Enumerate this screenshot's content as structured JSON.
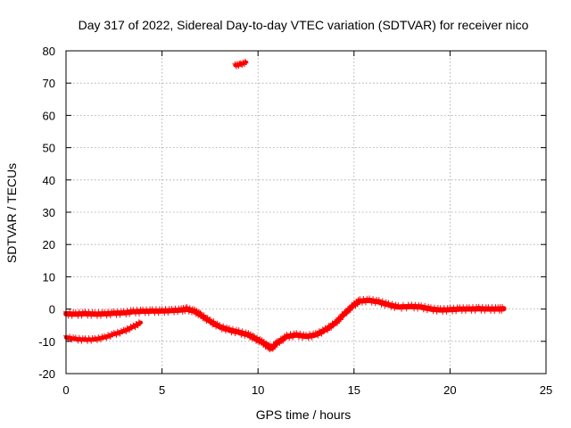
{
  "chart_data": {
    "type": "scatter",
    "title": "Day 317 of 2022, Sidereal Day-to-day VTEC variation (SDTVAR) for receiver nico",
    "xlabel": "GPS time / hours",
    "ylabel": "SDTVAR / TECUs",
    "xlim": [
      0,
      25
    ],
    "ylim": [
      -20,
      80
    ],
    "xticks": [
      0,
      5,
      10,
      15,
      20,
      25
    ],
    "yticks": [
      -20,
      -10,
      0,
      10,
      20,
      30,
      40,
      50,
      60,
      70,
      80
    ],
    "grid": true,
    "series": [
      {
        "name": "main band",
        "color": "#ff0000",
        "band_width": 1.6,
        "points": [
          [
            0.0,
            -1.5
          ],
          [
            0.5,
            -1.6
          ],
          [
            1.0,
            -1.4
          ],
          [
            1.5,
            -1.6
          ],
          [
            2.0,
            -1.5
          ],
          [
            2.5,
            -1.3
          ],
          [
            3.0,
            -1.2
          ],
          [
            3.5,
            -0.8
          ],
          [
            4.0,
            -0.7
          ],
          [
            4.5,
            -0.6
          ],
          [
            5.0,
            -0.6
          ],
          [
            5.5,
            -0.5
          ],
          [
            6.0,
            -0.3
          ],
          [
            6.3,
            0.0
          ],
          [
            6.7,
            -0.7
          ],
          [
            7.0,
            -1.8
          ],
          [
            7.5,
            -3.8
          ],
          [
            8.0,
            -5.5
          ],
          [
            8.5,
            -6.5
          ],
          [
            9.0,
            -7.2
          ],
          [
            9.5,
            -8.0
          ],
          [
            9.8,
            -9.0
          ],
          [
            10.2,
            -10.2
          ],
          [
            10.5,
            -11.5
          ],
          [
            10.7,
            -12.2
          ],
          [
            11.0,
            -10.5
          ],
          [
            11.5,
            -8.5
          ],
          [
            12.0,
            -8.0
          ],
          [
            12.5,
            -8.5
          ],
          [
            13.0,
            -8.0
          ],
          [
            13.5,
            -6.5
          ],
          [
            14.0,
            -4.5
          ],
          [
            14.5,
            -1.5
          ],
          [
            15.0,
            1.3
          ],
          [
            15.3,
            2.5
          ],
          [
            15.8,
            2.7
          ],
          [
            16.3,
            2.2
          ],
          [
            16.8,
            1.3
          ],
          [
            17.3,
            0.6
          ],
          [
            18.0,
            0.8
          ],
          [
            18.5,
            0.6
          ],
          [
            19.0,
            0.0
          ],
          [
            19.5,
            -0.3
          ],
          [
            20.0,
            -0.2
          ],
          [
            20.5,
            0.0
          ],
          [
            21.0,
            0.0
          ],
          [
            21.5,
            0.1
          ],
          [
            22.0,
            0.0
          ],
          [
            22.5,
            0.0
          ],
          [
            22.8,
            0.1
          ]
        ]
      },
      {
        "name": "lower arc",
        "color": "#ff0000",
        "band_width": 1.2,
        "points": [
          [
            0.0,
            -8.8
          ],
          [
            0.5,
            -9.3
          ],
          [
            1.0,
            -9.5
          ],
          [
            1.5,
            -9.4
          ],
          [
            2.0,
            -8.8
          ],
          [
            2.5,
            -7.8
          ],
          [
            3.0,
            -6.9
          ],
          [
            3.5,
            -5.5
          ],
          [
            3.9,
            -4.2
          ]
        ]
      },
      {
        "name": "outlier",
        "color": "#ff0000",
        "band_width": 1.0,
        "points": [
          [
            8.8,
            75.5
          ],
          [
            9.1,
            75.8
          ],
          [
            9.4,
            76.5
          ]
        ]
      }
    ]
  }
}
